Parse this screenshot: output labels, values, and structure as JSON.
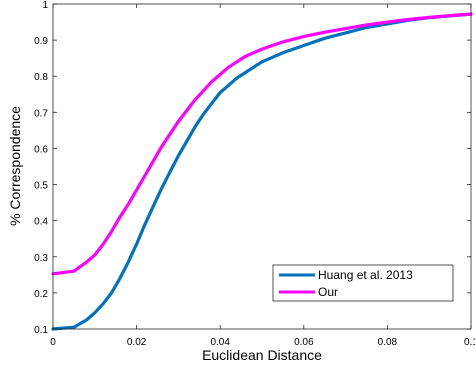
{
  "chart_data": {
    "type": "line",
    "xlabel": "Euclidean Distance",
    "ylabel": "% Correspondence",
    "xlim": [
      0,
      0.1
    ],
    "ylim": [
      0.1,
      1
    ],
    "xticks": [
      0,
      0.02,
      0.04,
      0.06,
      0.08,
      0.1
    ],
    "xtick_labels": [
      "0",
      "0.02",
      "0.04",
      "0.06",
      "0.08",
      "0.1"
    ],
    "yticks": [
      0.1,
      0.2,
      0.3,
      0.4,
      0.5,
      0.6,
      0.7,
      0.8,
      0.9,
      1
    ],
    "ytick_labels": [
      "0.1",
      "0.2",
      "0.3",
      "0.4",
      "0.5",
      "0.6",
      "0.7",
      "0.8",
      "0.9",
      "1"
    ],
    "grid": false,
    "legend_position": "bottom-right",
    "series": [
      {
        "name": "Huang et al. 2013",
        "color": "#0072bd",
        "x": [
          0,
          0.005,
          0.008,
          0.01,
          0.012,
          0.014,
          0.016,
          0.018,
          0.02,
          0.022,
          0.024,
          0.026,
          0.028,
          0.03,
          0.032,
          0.034,
          0.036,
          0.038,
          0.04,
          0.042,
          0.044,
          0.046,
          0.048,
          0.05,
          0.055,
          0.06,
          0.065,
          0.07,
          0.075,
          0.08,
          0.085,
          0.09,
          0.095,
          0.1
        ],
        "y": [
          0.1,
          0.105,
          0.125,
          0.145,
          0.17,
          0.2,
          0.24,
          0.285,
          0.335,
          0.39,
          0.44,
          0.49,
          0.535,
          0.58,
          0.62,
          0.66,
          0.695,
          0.725,
          0.755,
          0.775,
          0.795,
          0.81,
          0.825,
          0.84,
          0.865,
          0.885,
          0.905,
          0.92,
          0.935,
          0.945,
          0.955,
          0.962,
          0.967,
          0.972
        ]
      },
      {
        "name": "Our",
        "color": "#ff00ff",
        "x": [
          0,
          0.005,
          0.008,
          0.01,
          0.012,
          0.014,
          0.016,
          0.018,
          0.02,
          0.022,
          0.024,
          0.026,
          0.028,
          0.03,
          0.032,
          0.034,
          0.036,
          0.038,
          0.04,
          0.042,
          0.044,
          0.046,
          0.048,
          0.05,
          0.055,
          0.06,
          0.065,
          0.07,
          0.075,
          0.08,
          0.085,
          0.09,
          0.095,
          0.1
        ],
        "y": [
          0.253,
          0.26,
          0.285,
          0.305,
          0.335,
          0.37,
          0.41,
          0.445,
          0.485,
          0.525,
          0.565,
          0.605,
          0.64,
          0.675,
          0.705,
          0.735,
          0.76,
          0.785,
          0.805,
          0.825,
          0.84,
          0.855,
          0.865,
          0.875,
          0.895,
          0.91,
          0.922,
          0.932,
          0.942,
          0.95,
          0.957,
          0.963,
          0.968,
          0.972
        ]
      }
    ]
  }
}
